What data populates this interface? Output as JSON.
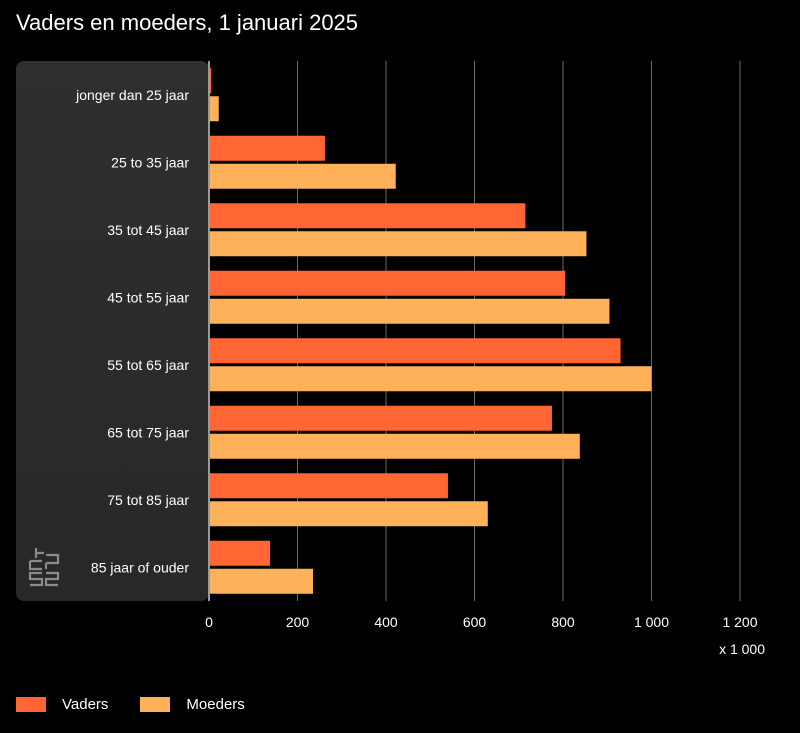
{
  "chart_data": {
    "type": "bar",
    "orientation": "horizontal",
    "title": "Vaders en moeders, 1 januari 2025",
    "categories": [
      "jonger dan 25 jaar",
      "25 to 35 jaar",
      "35 tot 45 jaar",
      "45 tot 55 jaar",
      "55 tot 65 jaar",
      "65 tot 75 jaar",
      "75 tot 85 jaar",
      "85 jaar of ouder"
    ],
    "series": [
      {
        "name": "Vaders",
        "color": "#ff6633",
        "values": [
          5,
          262,
          715,
          805,
          930,
          775,
          540,
          138
        ]
      },
      {
        "name": "Moeders",
        "color": "#ffb15a",
        "values": [
          22,
          422,
          853,
          905,
          1000,
          838,
          630,
          235
        ]
      }
    ],
    "xlim": [
      0,
      1200
    ],
    "xticks": [
      0,
      200,
      400,
      600,
      800,
      1000,
      1200
    ],
    "xtick_labels": [
      "0",
      "200",
      "400",
      "600",
      "800",
      "1 000",
      "1 200"
    ],
    "xunit": "x 1 000",
    "grid": true,
    "legend_position": "bottom-left"
  },
  "source_logo": "cbs-logo-icon"
}
